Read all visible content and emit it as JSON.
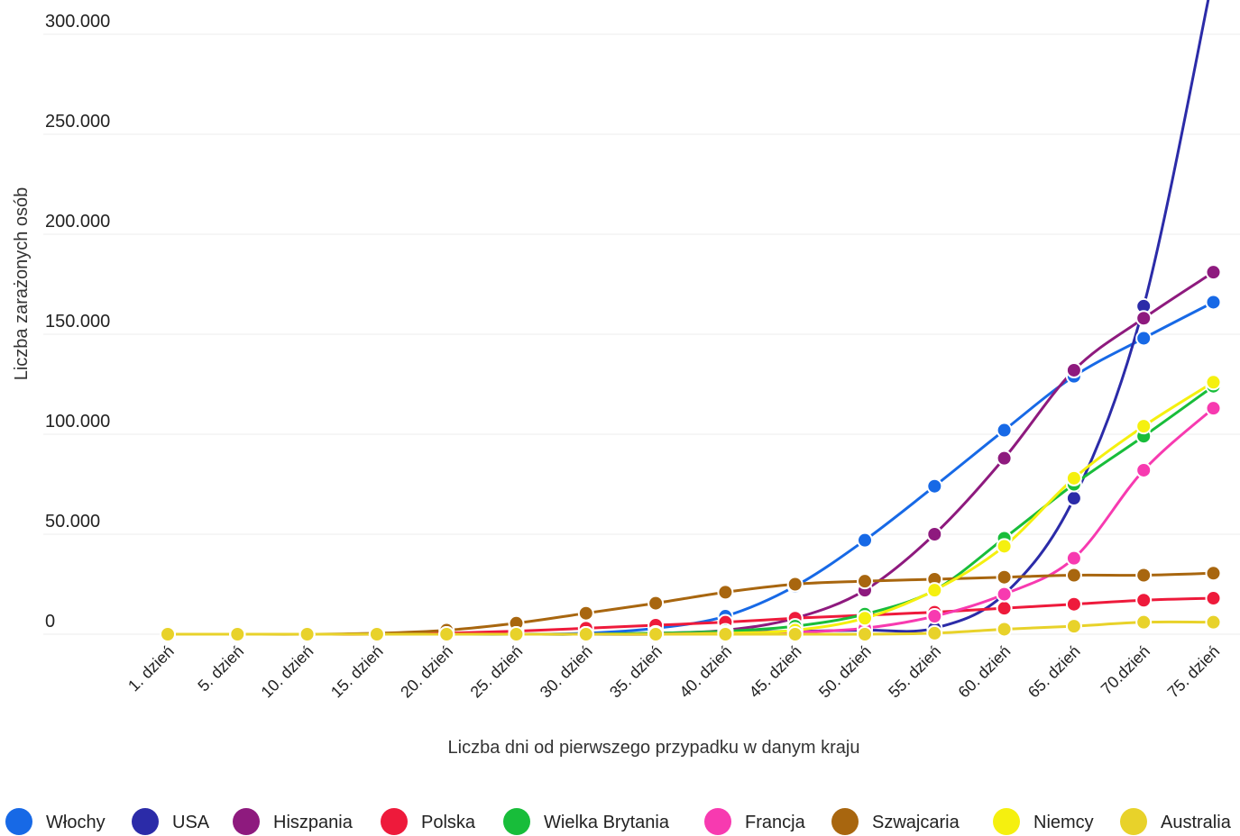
{
  "chart_data": {
    "type": "line",
    "title": "",
    "xlabel": "Liczba dni od pierwszego przypadku w danym kraju",
    "ylabel": "Liczba zarażonych osób",
    "ylim": [
      0,
      300000
    ],
    "y_ticks": [
      {
        "value": 0,
        "label": "0"
      },
      {
        "value": 50000,
        "label": "50.000"
      },
      {
        "value": 100000,
        "label": "100.000"
      },
      {
        "value": 150000,
        "label": "150.000"
      },
      {
        "value": 200000,
        "label": "200.000"
      },
      {
        "value": 250000,
        "label": "250.000"
      },
      {
        "value": 300000,
        "label": "300.000"
      }
    ],
    "categories": [
      "1. dzień",
      "5. dzień",
      "10. dzień",
      "15. dzień",
      "20. dzień",
      "25. dzień",
      "30. dzień",
      "35. dzień",
      "40. dzień",
      "45. dzień",
      "50. dzień",
      "55. dzień",
      "60. dzień",
      "65. dzień",
      "70.dzień",
      "75. dzień"
    ],
    "grid": true,
    "legend_position": "bottom",
    "series": [
      {
        "name": "Włochy",
        "color": "#1769e6",
        "values": [
          0,
          0,
          0,
          0,
          0,
          0,
          500,
          3000,
          9000,
          24000,
          47000,
          74000,
          102000,
          129000,
          148000,
          166000
        ]
      },
      {
        "name": "USA",
        "color": "#2b2ba8",
        "values": [
          0,
          0,
          0,
          0,
          0,
          0,
          0,
          0,
          1000,
          1500,
          2000,
          3000,
          20000,
          68000,
          164000,
          330000
        ]
      },
      {
        "name": "Hiszpania",
        "color": "#8e1a7e",
        "values": [
          0,
          0,
          0,
          0,
          0,
          0,
          0,
          500,
          2000,
          8000,
          22000,
          50000,
          88000,
          132000,
          158000,
          181000
        ]
      },
      {
        "name": "Polska",
        "color": "#ee1a3b",
        "values": [
          0,
          0,
          0,
          0,
          500,
          1500,
          3000,
          4500,
          6000,
          8000,
          9500,
          11000,
          13000,
          15000,
          17000,
          18000
        ]
      },
      {
        "name": "Wielka Brytania",
        "color": "#18bd3a",
        "values": [
          0,
          0,
          0,
          0,
          0,
          0,
          0,
          500,
          1500,
          4000,
          10000,
          22000,
          48000,
          75000,
          99000,
          124000
        ]
      },
      {
        "name": "Francja",
        "color": "#f73ab0",
        "values": [
          0,
          0,
          0,
          0,
          0,
          0,
          0,
          0,
          500,
          1000,
          3000,
          9000,
          20000,
          38000,
          82000,
          113000
        ]
      },
      {
        "name": "Szwajcaria",
        "color": "#a8660f",
        "values": [
          0,
          0,
          0,
          500,
          2000,
          5500,
          10500,
          15500,
          21000,
          25000,
          26500,
          27500,
          28500,
          29500,
          29500,
          30500
        ]
      },
      {
        "name": "Niemcy",
        "color": "#f5f00f",
        "values": [
          0,
          0,
          0,
          0,
          0,
          0,
          0,
          0,
          500,
          2000,
          8000,
          22000,
          44000,
          78000,
          104000,
          126000
        ]
      },
      {
        "name": "Australia",
        "color": "#e8d22a",
        "values": [
          0,
          0,
          0,
          0,
          0,
          0,
          0,
          0,
          0,
          0,
          0,
          500,
          2500,
          4000,
          6000,
          6000
        ]
      }
    ]
  }
}
